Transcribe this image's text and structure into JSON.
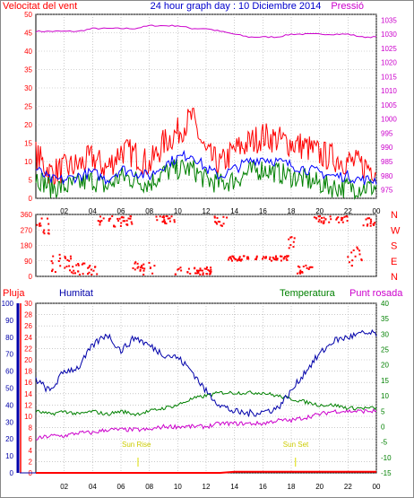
{
  "title": "24 hour graph day : 10 Diciembre 2014",
  "colors": {
    "wind": "#ff0000",
    "wind_avg": "#0000ff",
    "wind_low": "#008000",
    "pressure": "#cc00cc",
    "rain": "#ff0000",
    "humidity": "#0000aa",
    "temperature": "#008000",
    "dewpoint": "#cc00cc",
    "sun": "#dddd00"
  },
  "chart_data": [
    {
      "type": "line",
      "label_left": "Velocitat del vent",
      "label_right": "Pressió",
      "x_ticks": [
        "02",
        "04",
        "06",
        "08",
        "10",
        "12",
        "14",
        "16",
        "18",
        "20",
        "22",
        "00"
      ],
      "y_left_ticks": [
        "0",
        "5",
        "10",
        "15",
        "20",
        "25",
        "30",
        "35",
        "40",
        "45",
        "50"
      ],
      "y_left_range": [
        0,
        50
      ],
      "y_right_ticks": [
        "975",
        "980",
        "985",
        "990",
        "995",
        "1000",
        "1005",
        "1010",
        "1015",
        "1020",
        "1025",
        "1030",
        "1035"
      ],
      "y_right_range": [
        972,
        1037
      ],
      "grid": true,
      "hours": [
        0,
        1,
        2,
        3,
        4,
        5,
        6,
        7,
        8,
        9,
        10,
        11,
        12,
        13,
        14,
        15,
        16,
        17,
        18,
        19,
        20,
        21,
        22,
        23,
        24
      ],
      "series": [
        {
          "key": "gust",
          "values": [
            12,
            7,
            8,
            9,
            11,
            8,
            13,
            12,
            9,
            15,
            18,
            22,
            12,
            9,
            13,
            15,
            17,
            16,
            15,
            14,
            12,
            11,
            10,
            9,
            8
          ]
        },
        {
          "key": "avg",
          "values": [
            8,
            5,
            5,
            6,
            7,
            5,
            8,
            7,
            6,
            9,
            11,
            12,
            8,
            6,
            8,
            10,
            11,
            10,
            9,
            8,
            7,
            6,
            6,
            5,
            5
          ]
        },
        {
          "key": "low",
          "values": [
            6,
            3,
            3,
            4,
            5,
            3,
            6,
            5,
            4,
            7,
            8,
            8,
            5,
            4,
            5,
            7,
            8,
            7,
            6,
            5,
            4,
            3,
            3,
            3,
            3
          ]
        },
        {
          "key": "pressure",
          "values": [
            1031,
            1031,
            1031,
            1031,
            1032,
            1032,
            1032,
            1032,
            1033,
            1033,
            1033,
            1032,
            1032,
            1031,
            1030,
            1029,
            1029,
            1029,
            1030,
            1030,
            1030,
            1030,
            1030,
            1029,
            1029
          ]
        }
      ]
    },
    {
      "type": "scatter",
      "y_ticks": [
        "360",
        "270",
        "180",
        "90",
        "0"
      ],
      "y_range": [
        0,
        360
      ],
      "directions": [
        "N",
        "W",
        "S",
        "E",
        "N"
      ],
      "grid": true,
      "segments": [
        {
          "from": 0,
          "to": 1,
          "level": 300,
          "spread": 50
        },
        {
          "from": 1,
          "to": 2.6,
          "level": 70,
          "spread": 60
        },
        {
          "from": 2.6,
          "to": 4.4,
          "level": 30,
          "spread": 40
        },
        {
          "from": 4.4,
          "to": 6.8,
          "level": 330,
          "spread": 35
        },
        {
          "from": 6.8,
          "to": 8.4,
          "level": 40,
          "spread": 45
        },
        {
          "from": 8.4,
          "to": 9.8,
          "level": 340,
          "spread": 25
        },
        {
          "from": 9.8,
          "to": 12.6,
          "level": 20,
          "spread": 25
        },
        {
          "from": 12.6,
          "to": 13.5,
          "level": 330,
          "spread": 30
        },
        {
          "from": 13.5,
          "to": 17.8,
          "level": 100,
          "spread": 15
        },
        {
          "from": 17.8,
          "to": 18.4,
          "level": 210,
          "spread": 60
        },
        {
          "from": 18.4,
          "to": 19.6,
          "level": 30,
          "spread": 30
        },
        {
          "from": 19.6,
          "to": 22,
          "level": 340,
          "spread": 25
        },
        {
          "from": 22,
          "to": 23,
          "level": 110,
          "spread": 60
        },
        {
          "from": 23,
          "to": 24,
          "level": 320,
          "spread": 30
        }
      ]
    },
    {
      "type": "line",
      "label_rain": "Pluja",
      "label_humidity": "Humitat",
      "label_temperature": "Temperatura",
      "label_dewpoint": "Punt rosada",
      "x_ticks": [
        "02",
        "04",
        "06",
        "08",
        "10",
        "12",
        "14",
        "16",
        "18",
        "20",
        "22",
        "00"
      ],
      "y_humidity_ticks": [
        "0",
        "10",
        "20",
        "30",
        "40",
        "50",
        "60",
        "70",
        "80",
        "90",
        "100"
      ],
      "y_humidity_range": [
        0,
        100
      ],
      "y_rain_ticks": [
        "0",
        "2",
        "4",
        "6",
        "8",
        "10",
        "12",
        "14",
        "16",
        "18",
        "20",
        "22",
        "24",
        "26",
        "28",
        "30"
      ],
      "y_rain_range": [
        0,
        30
      ],
      "y_temp_ticks": [
        "-15",
        "-10",
        "-5",
        "0",
        "5",
        "10",
        "15",
        "20",
        "25",
        "30",
        "35",
        "40"
      ],
      "y_temp_range": [
        -15,
        40
      ],
      "grid": true,
      "hours": [
        0,
        1,
        2,
        3,
        4,
        5,
        6,
        7,
        8,
        9,
        10,
        11,
        12,
        13,
        14,
        15,
        16,
        17,
        18,
        19,
        20,
        21,
        22,
        23,
        24
      ],
      "series": [
        {
          "key": "humidity",
          "values": [
            55,
            48,
            60,
            62,
            75,
            82,
            72,
            80,
            75,
            70,
            68,
            60,
            48,
            40,
            36,
            35,
            36,
            38,
            48,
            60,
            70,
            78,
            80,
            82,
            82
          ]
        },
        {
          "key": "temperature",
          "values": [
            5,
            4,
            5,
            4,
            5,
            4,
            5,
            4,
            5,
            6,
            7,
            9,
            10,
            11,
            11,
            11,
            11,
            10,
            9,
            8,
            7,
            7,
            6,
            6,
            6
          ]
        },
        {
          "key": "dewpoint",
          "values": [
            -4,
            -3,
            -3,
            -2,
            -2,
            -1,
            -1,
            -1,
            -1,
            0,
            0,
            0,
            0,
            1,
            1,
            1,
            1,
            2,
            2,
            3,
            4,
            5,
            5,
            5,
            5
          ]
        },
        {
          "key": "rain",
          "values": [
            0,
            0,
            0,
            0,
            0,
            0,
            0,
            0,
            0,
            0,
            0,
            0,
            0,
            0,
            0.2,
            0.2,
            0.2,
            0.2,
            0.2,
            0.2,
            0.2,
            0.2,
            0.2,
            0.2,
            0.2
          ]
        }
      ],
      "sun_rise_label": "Sun Rise",
      "sun_rise_hour": 7.2,
      "sun_set_label": "Sun Set",
      "sun_set_hour": 18.3
    }
  ]
}
